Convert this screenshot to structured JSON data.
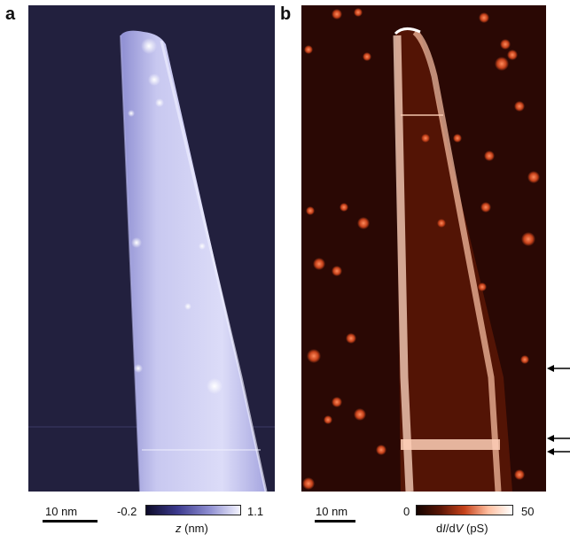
{
  "panel_a": {
    "letter": "a",
    "scalebar_label": "10 nm",
    "colorbar": {
      "min_label": "-0.2",
      "max_label": "1.1",
      "label_italic": "z",
      "label_rest": " (nm)",
      "colors": [
        "#0d0b28",
        "#3c3a8e",
        "#8c8cd0",
        "#f4f4ff"
      ]
    },
    "background_color": "#24223f"
  },
  "panel_b": {
    "letter": "b",
    "scalebar_label": "10 nm",
    "colorbar": {
      "min_label": "0",
      "max_label": "50",
      "label_part1": "d",
      "label_italic1": "I",
      "label_part2": "/d",
      "label_italic2": "V",
      "label_rest": " (pS)",
      "colors": [
        "#140400",
        "#5a1606",
        "#c6421b",
        "#ffbfa0",
        "#ffffff"
      ]
    },
    "background_color": "#2b0904"
  },
  "arrows": [
    {
      "name": "arrow-right-upper",
      "symbol": "←"
    },
    {
      "name": "arrow-right-middle",
      "symbol": "←"
    },
    {
      "name": "arrow-right-lower",
      "symbol": "←"
    }
  ]
}
